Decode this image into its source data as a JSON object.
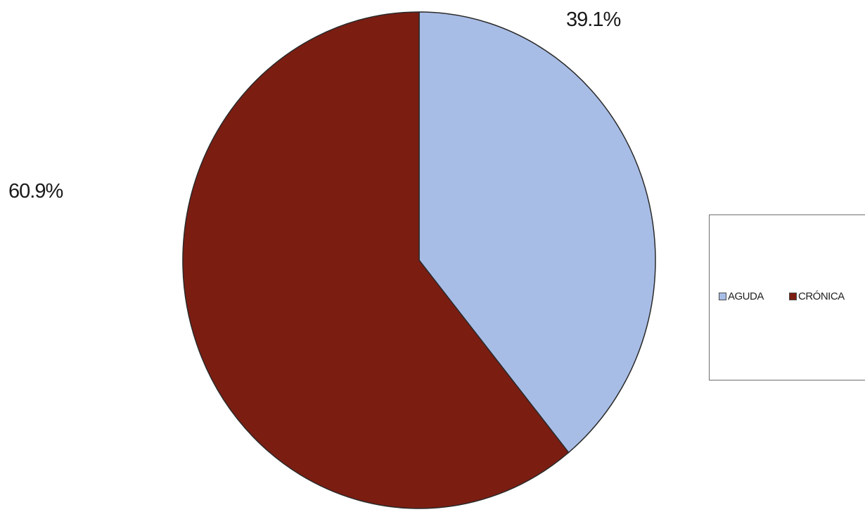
{
  "chart_data": {
    "type": "pie",
    "categories": [
      "AGUDA",
      "CRÓNICA"
    ],
    "values": [
      39.1,
      60.9
    ],
    "colors": [
      "#a8bde6",
      "#7c1d12"
    ],
    "data_labels": [
      "39.1%",
      "60.9%"
    ],
    "legend": {
      "entries": [
        "AGUDA",
        "CRÓNICA"
      ],
      "placement": "right"
    }
  }
}
